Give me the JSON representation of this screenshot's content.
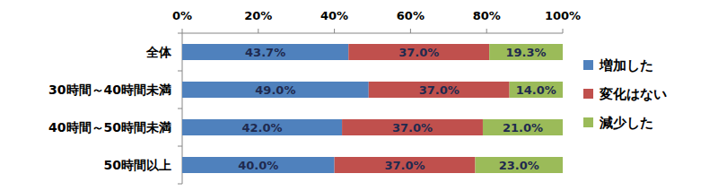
{
  "chart_data": {
    "type": "bar",
    "orientation": "horizontal",
    "stacked": true,
    "data_labels": true,
    "legend": "right",
    "grid": false,
    "categories": [
      "全体",
      "30時間～40時間未満",
      "40時間～50時間未満",
      "50時間以上"
    ],
    "series": [
      {
        "name": "増加した",
        "color": "#4f81bd",
        "values": [
          43.7,
          49.0,
          42.0,
          40.0
        ],
        "value_labels": [
          "43.7%",
          "49.0%",
          "42.0%",
          "40.0%"
        ]
      },
      {
        "name": "変化はない",
        "color": "#c0504d",
        "values": [
          37.0,
          37.0,
          37.0,
          37.0
        ],
        "value_labels": [
          "37.0%",
          "37.0%",
          "37.0%",
          "37.0%"
        ]
      },
      {
        "name": "減少した",
        "color": "#9bbb59",
        "values": [
          19.3,
          14.0,
          21.0,
          23.0
        ],
        "value_labels": [
          "19.3%",
          "14.0%",
          "21.0%",
          "23.0%"
        ]
      }
    ],
    "xlim": [
      0,
      100
    ],
    "xticks": [
      {
        "value": 0,
        "label": "0%"
      },
      {
        "value": 20,
        "label": "20%"
      },
      {
        "value": 40,
        "label": "40%"
      },
      {
        "value": 60,
        "label": "60%"
      },
      {
        "value": 80,
        "label": "80%"
      },
      {
        "value": 100,
        "label": "100%"
      }
    ]
  }
}
